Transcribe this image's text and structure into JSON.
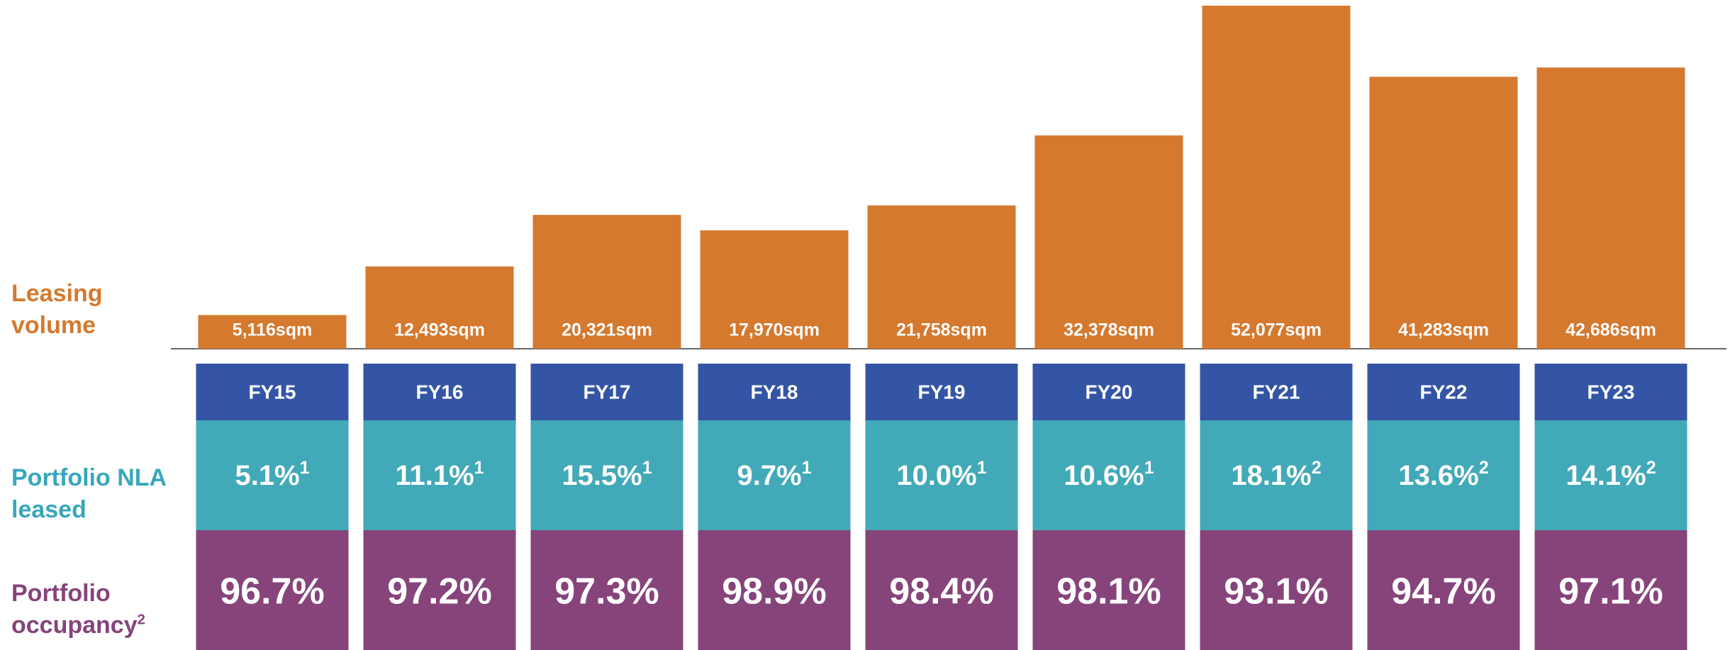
{
  "chart_data": {
    "type": "bar",
    "y_label": "Leasing volume",
    "categories": [
      "FY15",
      "FY16",
      "FY17",
      "FY18",
      "FY19",
      "FY20",
      "FY21",
      "FY22",
      "FY23"
    ],
    "values": [
      5116,
      12493,
      20321,
      17970,
      21758,
      32378,
      52077,
      41283,
      42686
    ],
    "value_labels": [
      "5,116sqm",
      "12,493sqm",
      "20,321sqm",
      "17,970sqm",
      "21,758sqm",
      "32,378sqm",
      "52,077sqm",
      "41,283sqm",
      "42,686sqm"
    ],
    "color": "#d5792f",
    "category_color": "#3455a5",
    "rows": [
      {
        "label": "Portfolio NLA leased",
        "color": "#41a9b8",
        "label_color": "#38a7bb",
        "values": [
          "5.1%",
          "11.1%",
          "15.5%",
          "9.7%",
          "10.0%",
          "10.6%",
          "18.1%",
          "13.6%",
          "14.1%"
        ],
        "footnotes": [
          "1",
          "1",
          "1",
          "1",
          "1",
          "1",
          "2",
          "2",
          "2"
        ]
      },
      {
        "label": "Portfolio occupancy",
        "label_footnote": "2",
        "color": "#86447b",
        "label_color": "#86447b",
        "values": [
          "96.7%",
          "97.2%",
          "97.3%",
          "98.9%",
          "98.4%",
          "98.1%",
          "93.1%",
          "94.7%",
          "97.1%"
        ]
      }
    ]
  }
}
